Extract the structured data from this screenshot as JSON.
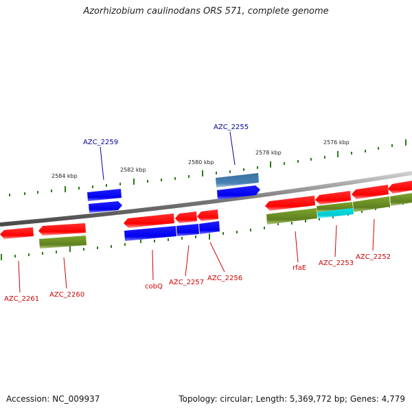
{
  "title": "Azorhizobium caulinodans ORS 571, complete genome",
  "footer": {
    "accession": "Accession: NC_009937",
    "summary": "Topology: circular; Length: 5,369,772 bp; Genes: 4,779"
  },
  "colors": {
    "backbone": "#7a7a7a",
    "tick": "#2a7a1a",
    "gene_red": "#ff0000",
    "gene_blue": "#0000ff",
    "gene_olive": "#6b8e23",
    "gene_steel": "#4682b4",
    "gene_cyan": "#00ced1",
    "label_red": "#cc0000",
    "label_blue": "#000099"
  },
  "kbp_labels": [
    "2584 kbp",
    "2582 kbp",
    "2580 kbp",
    "2578 kbp",
    "2576 kbp"
  ],
  "gene_labels": [
    "AZC_2259",
    "AZC_2255",
    "AZC_2261",
    "AZC_2260",
    "cobQ",
    "AZC_2257",
    "AZC_2256",
    "rfaE",
    "AZC_2253",
    "AZC_2252"
  ]
}
